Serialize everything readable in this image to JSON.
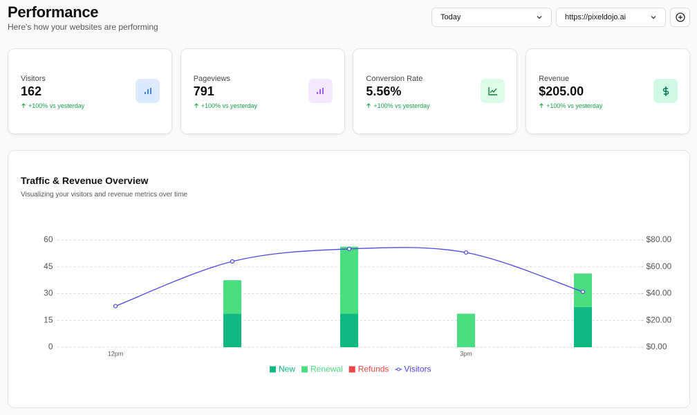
{
  "header": {
    "title": "Performance",
    "subtitle": "Here's how your websites are performing"
  },
  "filters": {
    "period": "Today",
    "site": "https://pixeldojo.ai"
  },
  "stats": [
    {
      "label": "Visitors",
      "value": "162",
      "change": "+100% vs yesterday"
    },
    {
      "label": "Pageviews",
      "value": "791",
      "change": "+100% vs yesterday"
    },
    {
      "label": "Conversion Rate",
      "value": "5.56%",
      "change": "+100% vs yesterday"
    },
    {
      "label": "Revenue",
      "value": "$205.00",
      "change": "+100% vs yesterday"
    }
  ],
  "chart_data": {
    "type": "bar",
    "title": "Traffic & Revenue Overview",
    "subtitle": "Visualizing your visitors and revenue metrics over time",
    "categories": [
      "12pm",
      null,
      null,
      "3pm",
      null
    ],
    "series": [
      {
        "name": "New",
        "type": "bar",
        "axis": "y2",
        "color": "#10b981",
        "values": [
          0,
          25,
          25,
          0,
          30
        ]
      },
      {
        "name": "Renewal",
        "type": "bar",
        "axis": "y2",
        "color": "#4ade80",
        "values": [
          0,
          25,
          50,
          25,
          25
        ]
      },
      {
        "name": "Refunds",
        "type": "bar",
        "axis": "y2",
        "color": "#ef4444",
        "values": [
          0,
          0,
          0,
          0,
          0
        ]
      },
      {
        "name": "Visitors",
        "type": "line",
        "color": "#4f46e5",
        "values": [
          23,
          48,
          55,
          53,
          31
        ]
      }
    ],
    "ylim": [
      0,
      60
    ],
    "yticks": [
      0,
      15,
      30,
      45,
      60
    ],
    "y2lim": [
      0,
      80
    ],
    "y2ticks": [
      {
        "value": 0,
        "label": "$0.00"
      },
      {
        "value": 20,
        "label": "$20.00"
      },
      {
        "value": 40,
        "label": "$40.00"
      },
      {
        "value": 60,
        "label": "$60.00"
      },
      {
        "value": 80,
        "label": "$80.00"
      }
    ],
    "grid": true,
    "stacked": true,
    "legend": "bottom"
  }
}
